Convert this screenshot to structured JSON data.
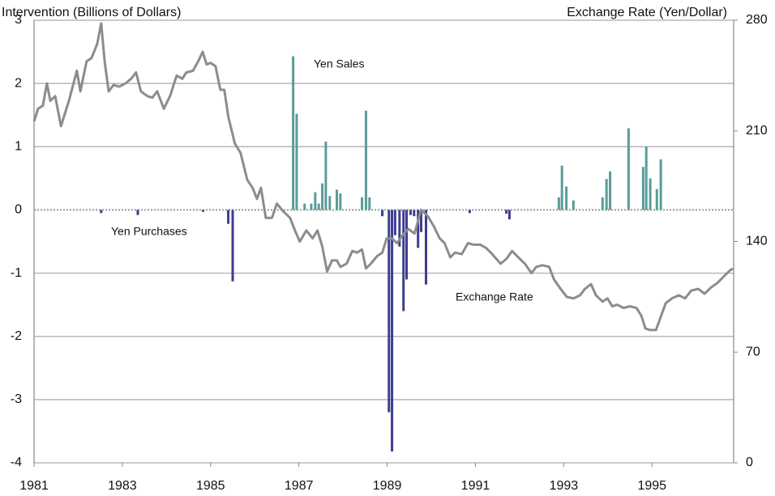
{
  "chart_data": {
    "type": "bar",
    "y_label": "Intervention (Billions of Dollars)",
    "y2_label": "Exchange Rate (Yen/Dollar)",
    "xlim": [
      1981,
      1996.85
    ],
    "xticks": [
      1981,
      1983,
      1985,
      1987,
      1989,
      1991,
      1993,
      1995
    ],
    "ylim": [
      -4,
      3
    ],
    "yticks": [
      -4,
      -3,
      -2,
      -1,
      0,
      1,
      2,
      3
    ],
    "y2lim": [
      0,
      280
    ],
    "y2ticks": [
      0,
      70,
      140,
      210,
      280
    ],
    "grid": true,
    "series": [
      {
        "name": "Yen Sales",
        "type": "bar",
        "color": "#5a9c9a",
        "x": [
          1986.87,
          1986.95,
          1987.13,
          1987.28,
          1987.37,
          1987.45,
          1987.53,
          1987.61,
          1987.7,
          1987.86,
          1987.94,
          1988.43,
          1988.52,
          1988.6,
          1992.89,
          1992.96,
          1993.06,
          1993.22,
          1993.88,
          1993.97,
          1994.05,
          1994.47,
          1994.8,
          1994.87,
          1994.96,
          1995.11,
          1995.2
        ],
        "values": [
          2.43,
          1.52,
          0.1,
          0.1,
          0.28,
          0.1,
          0.42,
          1.08,
          0.22,
          0.32,
          0.26,
          0.2,
          1.57,
          0.2,
          0.2,
          0.7,
          0.37,
          0.15,
          0.2,
          0.49,
          0.61,
          1.29,
          0.68,
          1.0,
          0.5,
          0.33,
          0.8
        ]
      },
      {
        "name": "Yen Purchases",
        "type": "bar",
        "color": "#3d3d8f",
        "x": [
          1982.52,
          1983.35,
          1984.83,
          1985.4,
          1985.5,
          1988.89,
          1989.04,
          1989.11,
          1989.18,
          1989.28,
          1989.37,
          1989.44,
          1989.53,
          1989.61,
          1989.7,
          1989.77,
          1989.88,
          1990.87,
          1991.7,
          1991.77
        ],
        "values": [
          -0.05,
          -0.08,
          -0.03,
          -0.22,
          -1.13,
          -0.1,
          -3.2,
          -3.82,
          -0.4,
          -0.58,
          -1.6,
          -1.1,
          -0.08,
          -0.1,
          -0.6,
          -0.35,
          -1.18,
          -0.05,
          -0.06,
          -0.15
        ]
      },
      {
        "name": "Exchange Rate",
        "type": "line",
        "axis": "y2",
        "color": "#8c8c8c",
        "x": [
          1981.0,
          1981.09,
          1981.2,
          1981.29,
          1981.37,
          1981.48,
          1981.61,
          1981.79,
          1981.97,
          1982.05,
          1982.19,
          1982.3,
          1982.43,
          1982.52,
          1982.6,
          1982.69,
          1982.8,
          1982.93,
          1983.07,
          1983.2,
          1983.31,
          1983.42,
          1983.57,
          1983.68,
          1983.79,
          1983.94,
          1984.08,
          1984.23,
          1984.36,
          1984.45,
          1984.6,
          1984.72,
          1984.82,
          1984.91,
          1985.0,
          1985.11,
          1985.22,
          1985.31,
          1985.4,
          1985.55,
          1985.68,
          1985.83,
          1985.95,
          1986.05,
          1986.14,
          1986.25,
          1986.39,
          1986.5,
          1986.65,
          1986.8,
          1986.91,
          1987.02,
          1987.17,
          1987.31,
          1987.42,
          1987.53,
          1987.64,
          1987.75,
          1987.86,
          1987.94,
          1988.08,
          1988.21,
          1988.32,
          1988.43,
          1988.52,
          1988.63,
          1988.78,
          1988.89,
          1988.99,
          1989.11,
          1989.22,
          1989.35,
          1989.48,
          1989.62,
          1989.77,
          1989.92,
          1990.05,
          1990.19,
          1990.3,
          1990.43,
          1990.54,
          1990.69,
          1990.83,
          1990.96,
          1991.11,
          1991.24,
          1991.38,
          1991.57,
          1991.7,
          1991.83,
          1991.97,
          1992.12,
          1992.27,
          1992.38,
          1992.52,
          1992.67,
          1992.78,
          1992.93,
          1993.07,
          1993.22,
          1993.37,
          1993.48,
          1993.62,
          1993.73,
          1993.88,
          1993.99,
          1994.1,
          1994.21,
          1994.36,
          1994.5,
          1994.65,
          1994.76,
          1994.85,
          1994.96,
          1995.09,
          1995.18,
          1995.31,
          1995.45,
          1995.61,
          1995.75,
          1995.89,
          1996.05,
          1996.19,
          1996.34,
          1996.49,
          1996.63,
          1996.74,
          1996.83
        ],
        "values": [
          216,
          224,
          226,
          240,
          229,
          232,
          213,
          229,
          248,
          235,
          254,
          256,
          265,
          278,
          254,
          235,
          239,
          238,
          240,
          243,
          247,
          235,
          232,
          231,
          235,
          224,
          232,
          245,
          243,
          247,
          248,
          254,
          260,
          252,
          253,
          251,
          236,
          236,
          219,
          202,
          196,
          179,
          174,
          167,
          174,
          155,
          155,
          164,
          159,
          155,
          147,
          140,
          147,
          142,
          147,
          137,
          121,
          128,
          128,
          124,
          126,
          134,
          133,
          135,
          123,
          126,
          131,
          133,
          142,
          142,
          139,
          144,
          148,
          145,
          160,
          156,
          150,
          142,
          139,
          130,
          133,
          132,
          139,
          138,
          138,
          136,
          132,
          126,
          129,
          134,
          130,
          126,
          120,
          124,
          125,
          124,
          116,
          110,
          105,
          104,
          106,
          110,
          113,
          106,
          102,
          104,
          99,
          100,
          98,
          99,
          98,
          93,
          85,
          84,
          84,
          91,
          101,
          104,
          106,
          104,
          109,
          110,
          107,
          111,
          114,
          118,
          121,
          123
        ]
      }
    ]
  }
}
